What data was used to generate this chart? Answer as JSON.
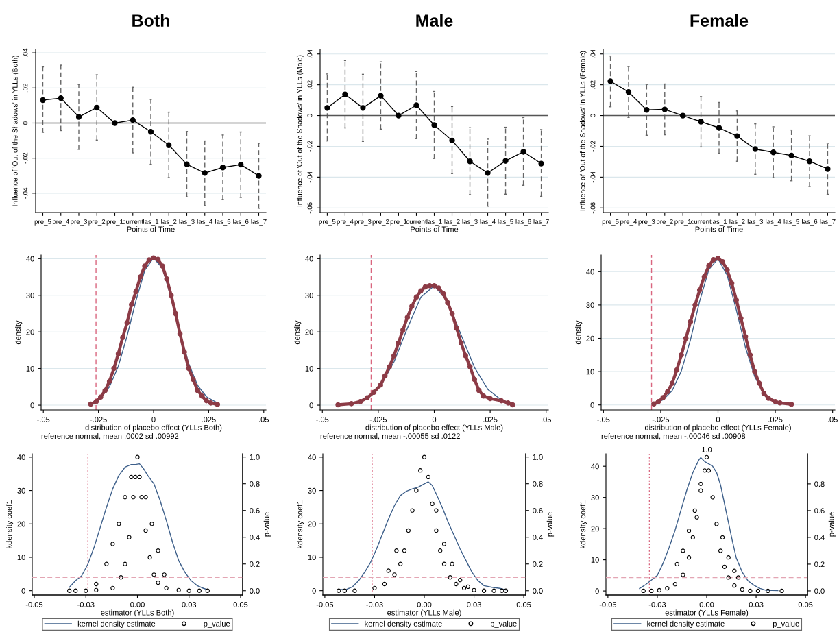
{
  "chart_data": [
    {
      "type": "line",
      "title": "Both",
      "xlabel": "Points of Time",
      "ylabel": "Influence of 'Out of the Shadows' in YLLs (Both)",
      "categories": [
        "pre_5",
        "pre_4",
        "pre_3",
        "pre_2",
        "pre_1",
        "current",
        "las_1",
        "las_2",
        "las_3",
        "las_4",
        "las_5",
        "las_6",
        "las_7"
      ],
      "marker": "circle",
      "grid": "y",
      "ylim": [
        -0.051,
        0.042
      ],
      "yticks": [
        {
          "value": -0.04,
          "label": "-.04"
        },
        {
          "value": -0.02,
          "label": "-.02"
        },
        0,
        {
          "value": 0.02,
          "label": ".02"
        },
        {
          "value": 0.04,
          "label": ".04"
        }
      ],
      "series": [
        {
          "color": "#000000",
          "values": [
            0.0131,
            0.0142,
            0.0035,
            0.0088,
            0,
            0.0017,
            -0.005,
            -0.0126,
            -0.0235,
            -0.0285,
            -0.0253,
            -0.0237,
            -0.0301
          ],
          "errors": [
            [
              -0.0053,
              0.032
            ],
            [
              -0.0043,
              0.033
            ],
            [
              -0.015,
              0.022
            ],
            [
              -0.0097,
              0.0275
            ],
            null,
            [
              -0.017,
              0.0204
            ],
            [
              -0.0235,
              0.0135
            ],
            [
              -0.0311,
              0.0062
            ],
            [
              -0.0421,
              -0.0048
            ],
            [
              -0.0471,
              -0.0102
            ],
            [
              -0.0437,
              -0.0068
            ],
            [
              -0.0424,
              -0.0051
            ],
            [
              -0.0486,
              -0.0115
            ]
          ]
        }
      ],
      "ref_lines": [
        {
          "axis": "y",
          "value": 0,
          "color": "#555555",
          "line_style": "solid"
        }
      ]
    },
    {
      "type": "line",
      "title": "Male",
      "xlabel": "Points of Time",
      "ylabel": "Influence of 'Out of the Shadows' in YLLs (Male)",
      "categories": [
        "pre_5",
        "pre_4",
        "pre_3",
        "pre_2",
        "pre_1",
        "current",
        "las_1",
        "las_2",
        "las_3",
        "las_4",
        "las_5",
        "las_6",
        "las_7"
      ],
      "marker": "circle",
      "grid": "y",
      "ylim": [
        -0.063,
        0.043
      ],
      "yticks": [
        {
          "value": -0.06,
          "label": "-.06"
        },
        {
          "value": -0.04,
          "label": "-.04"
        },
        {
          "value": -0.02,
          "label": "-.02"
        },
        0,
        {
          "value": 0.02,
          "label": ".02"
        },
        {
          "value": 0.04,
          "label": ".04"
        }
      ],
      "series": [
        {
          "color": "#000000",
          "values": [
            0.005,
            0.0137,
            0.005,
            0.0129,
            0,
            0.0067,
            -0.0062,
            -0.0162,
            -0.0297,
            -0.0373,
            -0.0294,
            -0.0235,
            -0.0312
          ],
          "errors": [
            [
              -0.0165,
              0.027
            ],
            [
              -0.008,
              0.0357
            ],
            [
              -0.0168,
              0.0268
            ],
            [
              -0.0088,
              0.0349
            ],
            null,
            [
              -0.015,
              0.0286
            ],
            [
              -0.0279,
              0.0156
            ],
            [
              -0.0377,
              0.0058
            ],
            [
              -0.0514,
              -0.0079
            ],
            [
              -0.0589,
              -0.0153
            ],
            [
              -0.0511,
              -0.0076
            ],
            [
              -0.0453,
              -0.0013
            ],
            [
              -0.0525,
              -0.0091
            ]
          ]
        }
      ],
      "ref_lines": [
        {
          "axis": "y",
          "value": 0,
          "color": "#555555",
          "line_style": "solid"
        }
      ]
    },
    {
      "type": "line",
      "title": "Female",
      "xlabel": "Points of Time",
      "ylabel": "Influence of 'Out of the Shadows' in YLLs (Female)",
      "categories": [
        "pre_5",
        "pre_4",
        "pre_3",
        "pre_2",
        "pre_1",
        "current",
        "las_1",
        "las_2",
        "las_3",
        "las_4",
        "las_5",
        "las_6",
        "las_7"
      ],
      "marker": "circle",
      "grid": "y",
      "ylim": [
        -0.063,
        0.043
      ],
      "yticks": [
        {
          "value": -0.06,
          "label": "-.06"
        },
        {
          "value": -0.04,
          "label": "-.04"
        },
        {
          "value": -0.02,
          "label": "-.02"
        },
        0,
        {
          "value": 0.02,
          "label": ".02"
        },
        {
          "value": 0.04,
          "label": ".04"
        }
      ],
      "series": [
        {
          "color": "#000000",
          "values": [
            0.0223,
            0.0153,
            0.0037,
            0.004,
            0,
            -0.004,
            -0.008,
            -0.0134,
            -0.0218,
            -0.0239,
            -0.026,
            -0.0297,
            -0.0347
          ],
          "errors": [
            [
              0.0057,
              0.0387
            ],
            [
              -0.0012,
              0.0318
            ],
            [
              -0.0128,
              0.0202
            ],
            [
              -0.0125,
              0.0205
            ],
            null,
            [
              -0.0204,
              0.0123
            ],
            [
              -0.0245,
              0.0085
            ],
            [
              -0.0297,
              0.003
            ],
            [
              -0.0382,
              -0.0054
            ],
            [
              -0.0404,
              -0.0073
            ],
            [
              -0.0424,
              -0.0094
            ],
            [
              -0.0461,
              -0.0132
            ],
            [
              -0.0512,
              -0.018
            ]
          ]
        }
      ],
      "ref_lines": [
        {
          "axis": "y",
          "value": 0,
          "color": "#555555",
          "line_style": "solid"
        }
      ]
    },
    {
      "type": "line",
      "xlabel": "distribution of placebo effect (YLLs Both)",
      "ylabel": "density",
      "annotations": [
        "reference normal, mean .0002 sd .00992"
      ],
      "grid": "y",
      "xlim": [
        -0.051,
        0.051
      ],
      "xticks": [
        {
          "value": -0.05,
          "label": "-.05"
        },
        {
          "value": -0.025,
          "label": "-.025"
        },
        0,
        {
          "value": 0.025,
          "label": ".025"
        },
        {
          "value": 0.05,
          "label": ".05"
        }
      ],
      "ylim": [
        -1.3,
        41
      ],
      "yticks": [
        0,
        10,
        20,
        30,
        40
      ],
      "series": [
        {
          "color": "#3d5f8a",
          "x": [
            -0.028,
            -0.024,
            -0.02,
            -0.016,
            -0.012,
            -0.008,
            -0.004,
            0,
            0.004,
            0.008,
            0.012,
            0.016,
            0.02,
            0.024,
            0.029
          ],
          "values": [
            0.7,
            2.1,
            5.0,
            10.6,
            18.9,
            28.5,
            36.8,
            40.2,
            37.4,
            29.4,
            19.8,
            11.3,
            5.4,
            2.3,
            0.6
          ]
        },
        {
          "color": "#8c3b46",
          "marker": "circle",
          "x": [
            -0.0285,
            -0.026,
            -0.024,
            -0.022,
            -0.02,
            -0.018,
            -0.016,
            -0.014,
            -0.012,
            -0.01,
            -0.008,
            -0.006,
            -0.004,
            -0.002,
            0,
            0.002,
            0.004,
            0.006,
            0.008,
            0.01,
            0.012,
            0.014,
            0.016,
            0.018,
            0.02,
            0.022,
            0.024,
            0.026,
            0.029
          ],
          "values": [
            0.3,
            1.0,
            2.2,
            4,
            6.5,
            10,
            14,
            18.5,
            22.5,
            27.5,
            31,
            35,
            38,
            39.7,
            40.2,
            39.8,
            38,
            34.5,
            30,
            25,
            19.5,
            14.5,
            10,
            7,
            4,
            2.5,
            1.2,
            0.6,
            0.2
          ]
        }
      ],
      "ref_lines": [
        {
          "axis": "x",
          "value": -0.0261,
          "color": "#d9667f",
          "line_style": "dashed"
        }
      ]
    },
    {
      "type": "line",
      "xlabel": "distribution of placebo effect (YLLs Male)",
      "ylabel": "density",
      "annotations": [
        "reference normal, mean -.00055 sd .0122"
      ],
      "grid": "y",
      "xlim": [
        -0.051,
        0.051
      ],
      "xticks": [
        {
          "value": -0.05,
          "label": "-.05"
        },
        {
          "value": -0.025,
          "label": "-.025"
        },
        0,
        {
          "value": 0.025,
          "label": ".025"
        },
        {
          "value": 0.05,
          "label": ".05"
        }
      ],
      "ylim": [
        -1.3,
        41
      ],
      "yticks": [
        0,
        10,
        20,
        30,
        40
      ],
      "series": [
        {
          "color": "#3d5f8a",
          "x": [
            -0.024,
            -0.018,
            -0.012,
            -0.006,
            0,
            0.006,
            0.012,
            0.018,
            0.024,
            0.03,
            0.035
          ],
          "values": [
            5.2,
            11.8,
            21,
            29.5,
            32.6,
            28.3,
            19.2,
            10.3,
            4.3,
            1.4,
            0.5
          ]
        },
        {
          "color": "#8c3b46",
          "marker": "circle",
          "x": [
            -0.043,
            -0.037,
            -0.033,
            -0.03,
            -0.027,
            -0.024,
            -0.022,
            -0.02,
            -0.018,
            -0.016,
            -0.014,
            -0.012,
            -0.01,
            -0.008,
            -0.006,
            -0.004,
            -0.002,
            0,
            0.002,
            0.004,
            0.006,
            0.008,
            0.01,
            0.012,
            0.014,
            0.016,
            0.018,
            0.02,
            0.022,
            0.025,
            0.03,
            0.033,
            0.035
          ],
          "values": [
            0.1,
            0.4,
            1,
            2,
            3.5,
            5.5,
            8,
            10.5,
            13.5,
            17,
            20.5,
            24,
            27,
            29.5,
            31.2,
            32.3,
            32.6,
            32.6,
            32,
            30.5,
            28,
            25,
            21,
            17,
            13.5,
            10.5,
            7,
            4,
            2.5,
            1.8,
            1.2,
            0.6,
            0.1
          ]
        }
      ],
      "ref_lines": [
        {
          "axis": "x",
          "value": -0.0282,
          "color": "#d9667f",
          "line_style": "dashed"
        }
      ]
    },
    {
      "type": "line",
      "xlabel": "distribution of placebo effect (YLLs Female)",
      "ylabel": "density",
      "annotations": [
        "reference normal, mean -.00046 sd .00908"
      ],
      "grid": "y",
      "xlim": [
        -0.051,
        0.051
      ],
      "xticks": [
        {
          "value": -0.05,
          "label": "-.05"
        },
        {
          "value": -0.025,
          "label": "-.025"
        },
        0,
        {
          "value": 0.025,
          "label": ".025"
        },
        {
          "value": 0.05,
          "label": ".05"
        }
      ],
      "ylim": [
        -1.5,
        45
      ],
      "yticks": [
        0,
        10,
        20,
        30,
        40
      ],
      "series": [
        {
          "color": "#3d5f8a",
          "x": [
            -0.028,
            -0.024,
            -0.02,
            -0.016,
            -0.012,
            -0.008,
            -0.004,
            0,
            0.004,
            0.008,
            0.012,
            0.016,
            0.02
          ],
          "values": [
            0.5,
            1.5,
            4.3,
            10.2,
            19.6,
            31.2,
            40.6,
            43.9,
            38.9,
            28.5,
            17.2,
            8.5,
            3.5
          ]
        },
        {
          "color": "#8c3b46",
          "marker": "circle",
          "x": [
            -0.028,
            -0.026,
            -0.024,
            -0.022,
            -0.02,
            -0.018,
            -0.016,
            -0.014,
            -0.012,
            -0.01,
            -0.008,
            -0.006,
            -0.004,
            -0.002,
            0,
            0.002,
            0.004,
            0.006,
            0.008,
            0.01,
            0.012,
            0.014,
            0.016,
            0.018,
            0.02,
            0.022,
            0.025,
            0.027,
            0.032
          ],
          "values": [
            0.3,
            1,
            2.2,
            4,
            6.5,
            10.5,
            15,
            20,
            25,
            30,
            34.5,
            38.5,
            41.8,
            43.6,
            44,
            43,
            40.5,
            36.5,
            31.5,
            26,
            20.5,
            15,
            10,
            6.5,
            3.5,
            2,
            1,
            0.6,
            0.2
          ]
        }
      ],
      "ref_lines": [
        {
          "axis": "x",
          "value": -0.029,
          "color": "#d9667f",
          "line_style": "dashed"
        }
      ]
    },
    {
      "type": "line",
      "xlabel": "estimator (YLLs Both)",
      "ylabel": "kdensity coef1",
      "y2label": "p-value",
      "legend": "bottom",
      "xlim": [
        -0.051,
        0.051
      ],
      "xticks": [
        {
          "value": -0.05,
          "label": "-0.05"
        },
        {
          "value": -0.025,
          "label": "-0.03"
        },
        {
          "value": 0,
          "label": "0.00"
        },
        {
          "value": 0.025,
          "label": "0.03"
        },
        {
          "value": 0.05,
          "label": "0.05"
        }
      ],
      "ylim": [
        -1.3,
        41
      ],
      "yticks": [
        0,
        10,
        20,
        30,
        40
      ],
      "y2lim": [
        -0.032,
        1.024
      ],
      "y2ticks": [
        {
          "value": 0,
          "label": "0.0"
        },
        {
          "value": 0.2,
          "label": "0.2"
        },
        {
          "value": 0.4,
          "label": "0.4"
        },
        {
          "value": 0.6,
          "label": "0.6"
        },
        {
          "value": 0.8,
          "label": "0.8"
        },
        {
          "value": 1,
          "label": "1.0"
        }
      ],
      "series": [
        {
          "name": "kernel density estimate",
          "color": "#3d5f8a",
          "x": [
            -0.033,
            -0.03,
            -0.027,
            -0.024,
            -0.021,
            -0.018,
            -0.015,
            -0.012,
            -0.009,
            -0.006,
            -0.003,
            -0.001,
            0.001,
            0.003,
            0.005,
            0.008,
            0.011,
            0.014,
            0.017,
            0.02,
            0.023,
            0.026,
            0.029,
            0.032,
            0.034
          ],
          "values": [
            1,
            3,
            4.5,
            8,
            13,
            19,
            25,
            30.5,
            34.5,
            37,
            37.8,
            37.8,
            38,
            36.5,
            34.5,
            32,
            27,
            21,
            14.5,
            9,
            5.5,
            3,
            1.5,
            0.7,
            0.3
          ]
        },
        {
          "name": "p_value",
          "type": "scatter",
          "axis": "y2",
          "marker": "circle",
          "color": "#000000",
          "x": [
            -0.033,
            -0.03,
            -0.025,
            -0.02,
            -0.012,
            -0.008,
            -0.006,
            -0.004,
            -0.002,
            -0.001,
            0,
            0.001,
            0.002,
            0.004,
            0.006,
            0.008,
            0.01,
            0.014,
            -0.02,
            -0.015,
            -0.012,
            -0.009,
            -0.006,
            -0.003,
            0.004,
            0.007,
            0.01,
            0.013,
            0.02,
            0.025,
            0.03,
            0.034
          ],
          "values": [
            0,
            0,
            0,
            0.005,
            0.02,
            0.1,
            0.2,
            0.4,
            0.7,
            0.85,
            1.0,
            0.85,
            0.7,
            0.45,
            0.25,
            0.12,
            0.06,
            0.02,
            0.05,
            0.2,
            0.35,
            0.5,
            0.7,
            0.85,
            0.7,
            0.5,
            0.3,
            0.12,
            0.005,
            0,
            0,
            0
          ]
        }
      ],
      "ref_lines": [
        {
          "axis": "x",
          "value": -0.024,
          "color": "#d9667f",
          "line_style": "dotted"
        },
        {
          "axis": "y2",
          "value": 0.1,
          "color": "#e3a5b3",
          "line_style": "dashed"
        }
      ]
    },
    {
      "type": "line",
      "xlabel": "estimator (YLLs Male)",
      "ylabel": "kdensity coef1",
      "y2label": "p-value",
      "legend": "bottom",
      "xlim": [
        -0.051,
        0.051
      ],
      "xticks": [
        {
          "value": -0.05,
          "label": "-0.05"
        },
        {
          "value": -0.025,
          "label": "-0.03"
        },
        {
          "value": 0,
          "label": "0.00"
        },
        {
          "value": 0.025,
          "label": "0.03"
        },
        {
          "value": 0.05,
          "label": "0.05"
        }
      ],
      "ylim": [
        -1.3,
        41
      ],
      "yticks": [
        0,
        10,
        20,
        30,
        40
      ],
      "y2lim": [
        -0.032,
        1.024
      ],
      "y2ticks": [
        {
          "value": 0,
          "label": "0.0"
        },
        {
          "value": 0.2,
          "label": "0.2"
        },
        {
          "value": 0.4,
          "label": "0.4"
        },
        {
          "value": 0.6,
          "label": "0.6"
        },
        {
          "value": 0.8,
          "label": "0.8"
        },
        {
          "value": 1,
          "label": "1.0"
        }
      ],
      "series": [
        {
          "name": "kernel density estimate",
          "color": "#3d5f8a",
          "x": [
            -0.043,
            -0.039,
            -0.036,
            -0.033,
            -0.03,
            -0.027,
            -0.024,
            -0.021,
            -0.018,
            -0.015,
            -0.012,
            -0.009,
            -0.006,
            -0.003,
            0,
            0.002,
            0.004,
            0.006,
            0.009,
            0.012,
            0.015,
            0.018,
            0.021,
            0.024,
            0.027,
            0.03,
            0.034,
            0.038,
            0.041
          ],
          "values": [
            0.3,
            0.4,
            1.2,
            3,
            5.5,
            8.5,
            12.5,
            17,
            21.5,
            25.5,
            28.5,
            29.8,
            30.5,
            31,
            32,
            32.6,
            31.5,
            29,
            25,
            20.5,
            16.5,
            12.5,
            9,
            5.5,
            3,
            1.5,
            1,
            0.7,
            0.2
          ]
        },
        {
          "name": "p_value",
          "type": "scatter",
          "axis": "y2",
          "marker": "circle",
          "color": "#000000",
          "x": [
            -0.043,
            -0.04,
            -0.035,
            -0.025,
            -0.02,
            -0.015,
            -0.012,
            -0.01,
            -0.008,
            -0.006,
            -0.004,
            -0.002,
            0,
            0.002,
            0.004,
            0.006,
            0.008,
            0.01,
            0.013,
            0.016,
            0.02,
            0.025,
            0.03,
            0.035,
            0.039,
            0.041,
            -0.018,
            -0.014,
            0.006,
            0.01,
            0.014,
            0.018,
            0.022
          ],
          "values": [
            0,
            0,
            0,
            0.02,
            0.05,
            0.12,
            0.2,
            0.3,
            0.45,
            0.6,
            0.75,
            0.9,
            1.0,
            0.85,
            0.65,
            0.45,
            0.3,
            0.2,
            0.1,
            0.05,
            0.02,
            0.005,
            0,
            0,
            0,
            0,
            0.15,
            0.3,
            0.6,
            0.35,
            0.2,
            0.08,
            0.03
          ]
        }
      ],
      "ref_lines": [
        {
          "axis": "x",
          "value": -0.0262,
          "color": "#d9667f",
          "line_style": "dotted"
        },
        {
          "axis": "y2",
          "value": 0.1,
          "color": "#e3a5b3",
          "line_style": "dashed"
        }
      ]
    },
    {
      "type": "line",
      "xlabel": "estimator (YLLs Female)",
      "ylabel": "kdensity coef1",
      "y2label": "p-value",
      "legend": "bottom",
      "annotations": [
        {
          "text": "1.0",
          "x": 0,
          "y": 44
        }
      ],
      "xlim": [
        -0.051,
        0.051
      ],
      "xticks": [
        {
          "value": -0.05,
          "label": "-0.05"
        },
        {
          "value": -0.025,
          "label": "-0.03"
        },
        {
          "value": 0,
          "label": "0.00"
        },
        {
          "value": 0.025,
          "label": "0.03"
        },
        {
          "value": 0.05,
          "label": "0.05"
        }
      ],
      "ylim": [
        -1.3,
        44
      ],
      "yticks": [
        0,
        10,
        20,
        30,
        40
      ],
      "y2lim": [
        -0.031,
        1.025
      ],
      "y2ticks": [
        {
          "value": 0,
          "label": "0.0"
        },
        {
          "value": 0.2,
          "label": "0.2"
        },
        {
          "value": 0.4,
          "label": "0.4"
        },
        {
          "value": 0.6,
          "label": "0.6"
        },
        {
          "value": 0.8,
          "label": "0.8"
        }
      ],
      "series": [
        {
          "name": "kernel density estimate",
          "color": "#3d5f8a",
          "x": [
            -0.034,
            -0.031,
            -0.028,
            -0.025,
            -0.022,
            -0.019,
            -0.016,
            -0.013,
            -0.01,
            -0.007,
            -0.004,
            -0.003,
            -0.001,
            0.001,
            0.003,
            0.005,
            0.007,
            0.009,
            0.011,
            0.013,
            0.015,
            0.018,
            0.021,
            0.024,
            0.027,
            0.03,
            0.036
          ],
          "values": [
            0.8,
            2,
            3.5,
            5,
            9,
            14,
            19.5,
            26,
            32.5,
            38,
            42,
            42.8,
            41.5,
            40.8,
            40,
            38,
            34,
            28,
            22,
            16,
            10.5,
            6,
            3.2,
            1.8,
            0.8,
            0.2,
            0.1
          ]
        },
        {
          "name": "p_value",
          "type": "scatter",
          "axis": "y2",
          "marker": "circle",
          "color": "#000000",
          "x": [
            -0.032,
            -0.028,
            -0.024,
            -0.02,
            -0.016,
            -0.012,
            -0.009,
            -0.007,
            -0.005,
            -0.003,
            -0.001,
            0,
            -0.015,
            -0.012,
            -0.009,
            -0.006,
            -0.003,
            0.001,
            0.003,
            0.005,
            0.007,
            0.009,
            0.011,
            0.014,
            0.018,
            0.022,
            0.026,
            0.031,
            0.038,
            0.008,
            0.011,
            0.014,
            0.016
          ],
          "values": [
            0,
            0,
            0.005,
            0.02,
            0.05,
            0.12,
            0.25,
            0.4,
            0.55,
            0.75,
            0.9,
            1.0,
            0.2,
            0.3,
            0.45,
            0.6,
            0.8,
            0.9,
            0.7,
            0.5,
            0.3,
            0.18,
            0.1,
            0.04,
            0.01,
            0,
            0,
            0,
            0,
            0.4,
            0.25,
            0.15,
            0.1
          ]
        }
      ],
      "ref_lines": [
        {
          "axis": "x",
          "value": -0.029,
          "color": "#d9667f",
          "line_style": "dotted"
        },
        {
          "axis": "y2",
          "value": 0.1,
          "color": "#e3a5b3",
          "line_style": "dashed"
        }
      ]
    }
  ]
}
